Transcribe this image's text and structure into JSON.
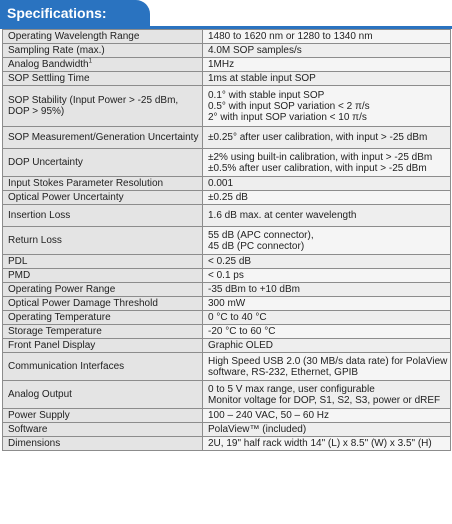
{
  "header": {
    "title": "Specifications:"
  },
  "rows": [
    {
      "label": [
        "Operating Wavelength Range"
      ],
      "value": [
        "1480 to 1620 nm or 1280 to 1340 nm"
      ]
    },
    {
      "label": [
        "Sampling Rate (max.)"
      ],
      "value": [
        "4.0M SOP samples/s"
      ]
    },
    {
      "label": [
        "Analog Bandwidth"
      ],
      "label_sup": "1",
      "value": [
        "1MHz"
      ]
    },
    {
      "label": [
        "SOP Settling Time"
      ],
      "value": [
        "1ms at stable input SOP"
      ]
    },
    {
      "label": [
        "SOP Stability (Input Power > -25 dBm,",
        "DOP > 95%)"
      ],
      "value": [
        "0.1° with stable input SOP",
        "0.5° with input SOP variation < 2 π/s",
        "2° with input SOP variation < 10 π/s"
      ]
    },
    {
      "label": [
        "SOP Measurement/Generation Uncertainty"
      ],
      "value": [
        "±0.25° after user calibration, with input > -25 dBm"
      ]
    },
    {
      "label": [
        "DOP Uncertainty"
      ],
      "value": [
        "±2% using built-in calibration, with input > -25 dBm",
        "±0.5% after user calibration, with input > -25 dBm"
      ]
    },
    {
      "label": [
        "Input Stokes Parameter Resolution"
      ],
      "value": [
        "0.001"
      ]
    },
    {
      "label": [
        "Optical Power Uncertainty"
      ],
      "value": [
        "±0.25 dB"
      ]
    },
    {
      "label": [
        "Insertion Loss"
      ],
      "value": [
        "1.6 dB max. at center wavelength"
      ]
    },
    {
      "label": [
        "Return Loss"
      ],
      "value": [
        "55 dB (APC connector),",
        "45 dB (PC connector)"
      ]
    },
    {
      "label": [
        "PDL"
      ],
      "value": [
        "< 0.25 dB"
      ]
    },
    {
      "label": [
        "PMD"
      ],
      "value": [
        "< 0.1 ps"
      ]
    },
    {
      "label": [
        "Operating Power Range"
      ],
      "value": [
        "-35 dBm to +10 dBm"
      ]
    },
    {
      "label": [
        "Optical Power Damage Threshold"
      ],
      "value": [
        "300 mW"
      ]
    },
    {
      "label": [
        "Operating Temperature"
      ],
      "value": [
        "0 °C  to 40 °C"
      ]
    },
    {
      "label": [
        "Storage Temperature"
      ],
      "value": [
        "-20 °C  to 60 °C"
      ]
    },
    {
      "label": [
        "Front Panel Display"
      ],
      "value": [
        "Graphic OLED"
      ]
    },
    {
      "label": [
        "Communication Interfaces"
      ],
      "value": [
        "High Speed USB 2.0 (30 MB/s data rate) for PolaView",
        "software, RS-232, Ethernet, GPIB"
      ]
    },
    {
      "label": [
        "Analog Output"
      ],
      "value": [
        "0 to 5 V max range, user configurable",
        "Monitor voltage for DOP, S1, S2, S3, power or dREF"
      ]
    },
    {
      "label": [
        "Power Supply"
      ],
      "value": [
        "100 – 240 VAC, 50 – 60 Hz"
      ]
    },
    {
      "label": [
        "Software"
      ],
      "value": [
        "PolaView™ (included)"
      ]
    },
    {
      "label": [
        "Dimensions"
      ],
      "value": [
        "2U, 19\" half rack width 14\" (L) x 8.5\" (W) x 3.5\" (H)"
      ]
    }
  ]
}
